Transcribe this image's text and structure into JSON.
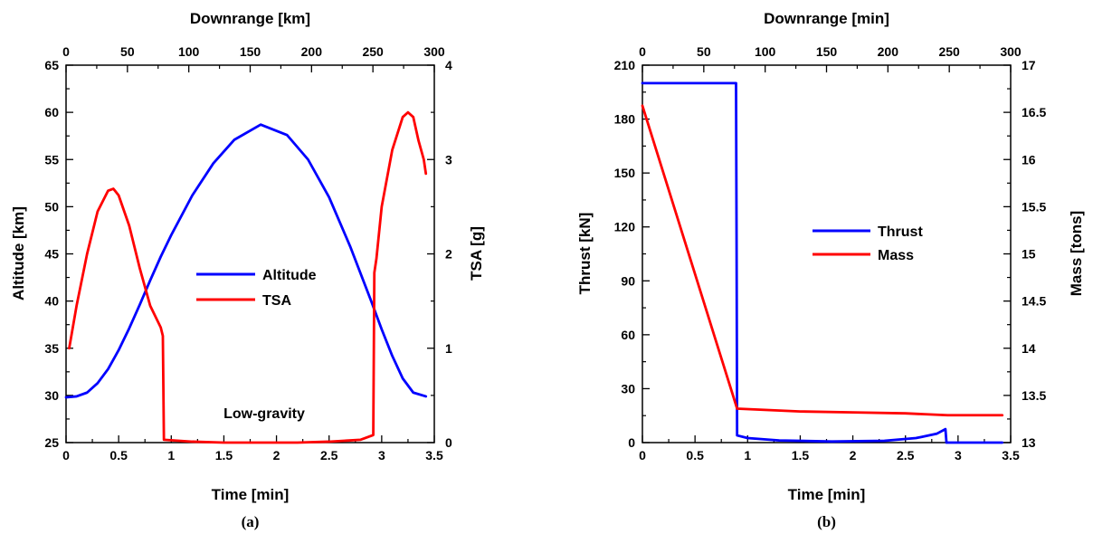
{
  "chart_data": [
    {
      "type": "line",
      "caption": "(a)",
      "xlabel": "Time [min]",
      "x2label": "Downrange [km]",
      "ylabel": "Altitude [km]",
      "y2label": "TSA [g]",
      "xlim": [
        0,
        3.5
      ],
      "x2lim": [
        0,
        300
      ],
      "ylim": [
        25,
        65
      ],
      "y2lim": [
        0,
        4
      ],
      "x_ticks": [
        "0",
        "0.5",
        "1",
        "1.5",
        "2",
        "2.5",
        "3",
        "3.5"
      ],
      "x2_ticks": [
        "0",
        "50",
        "100",
        "150",
        "200",
        "250",
        "300"
      ],
      "y_ticks": [
        "25",
        "30",
        "35",
        "40",
        "45",
        "50",
        "55",
        "60",
        "65"
      ],
      "y2_ticks": [
        "0",
        "1",
        "2",
        "3",
        "4"
      ],
      "legend_position": "center",
      "annotation": "Low-gravity",
      "colors": {
        "Altitude": "#0000ff",
        "TSA": "#ff0000"
      },
      "series": [
        {
          "name": "Altitude",
          "axis": "left",
          "x": [
            0.0,
            0.1,
            0.2,
            0.3,
            0.4,
            0.5,
            0.6,
            0.7,
            0.8,
            0.9,
            1.0,
            1.2,
            1.4,
            1.6,
            1.85,
            2.1,
            2.3,
            2.5,
            2.7,
            2.9,
            3.0,
            3.1,
            3.2,
            3.3,
            3.42
          ],
          "y": [
            29.8,
            29.9,
            30.3,
            31.3,
            32.8,
            34.8,
            37.1,
            39.6,
            42.2,
            44.7,
            47.0,
            51.2,
            54.6,
            57.1,
            58.7,
            57.6,
            55.0,
            51.0,
            45.8,
            40.0,
            37.0,
            34.2,
            31.8,
            30.3,
            29.9
          ]
        },
        {
          "name": "TSA",
          "axis": "right",
          "x": [
            0.03,
            0.1,
            0.2,
            0.3,
            0.4,
            0.45,
            0.5,
            0.6,
            0.7,
            0.8,
            0.9,
            0.92,
            0.93,
            1.2,
            1.5,
            1.85,
            2.2,
            2.5,
            2.8,
            2.92,
            2.93,
            2.95,
            3.0,
            3.1,
            3.2,
            3.25,
            3.3,
            3.35,
            3.4,
            3.42
          ],
          "y": [
            1.0,
            1.45,
            2.0,
            2.45,
            2.67,
            2.69,
            2.62,
            2.3,
            1.85,
            1.45,
            1.22,
            1.13,
            0.03,
            0.01,
            0.0,
            0.0,
            0.0,
            0.01,
            0.03,
            0.08,
            1.8,
            1.95,
            2.5,
            3.1,
            3.45,
            3.5,
            3.45,
            3.2,
            3.0,
            2.85
          ]
        }
      ]
    },
    {
      "type": "line",
      "caption": "(b)",
      "xlabel": "Time [min]",
      "x2label": "Downrange [min]",
      "ylabel": "Thrust [kN]",
      "y2label": "Mass [tons]",
      "xlim": [
        0,
        3.5
      ],
      "x2lim": [
        0,
        300
      ],
      "ylim": [
        0,
        210
      ],
      "y2lim": [
        13,
        17
      ],
      "x_ticks": [
        "0",
        "0.5",
        "1",
        "1.5",
        "2",
        "2.5",
        "3",
        "3.5"
      ],
      "x2_ticks": [
        "0",
        "50",
        "100",
        "150",
        "200",
        "250",
        "300"
      ],
      "y_ticks": [
        "0",
        "30",
        "60",
        "90",
        "120",
        "150",
        "180",
        "210"
      ],
      "y2_ticks": [
        "13",
        "13.5",
        "14",
        "14.5",
        "15",
        "15.5",
        "16",
        "16.5",
        "17"
      ],
      "legend_position": "center",
      "colors": {
        "Thrust": "#0000ff",
        "Mass": "#ff0000"
      },
      "series": [
        {
          "name": "Thrust",
          "axis": "left",
          "x": [
            0.0,
            0.89,
            0.895,
            0.9,
            1.0,
            1.3,
            1.8,
            2.3,
            2.6,
            2.8,
            2.88,
            2.89,
            3.42
          ],
          "y": [
            200,
            200,
            110,
            4,
            2.5,
            1.2,
            0.6,
            1.0,
            2.5,
            5.0,
            7.5,
            0,
            0
          ]
        },
        {
          "name": "Mass",
          "axis": "right",
          "x": [
            0.0,
            0.9,
            1.5,
            2.0,
            2.5,
            2.9,
            3.42
          ],
          "y": [
            16.57,
            13.36,
            13.33,
            13.32,
            13.31,
            13.29,
            13.29
          ]
        }
      ]
    }
  ]
}
